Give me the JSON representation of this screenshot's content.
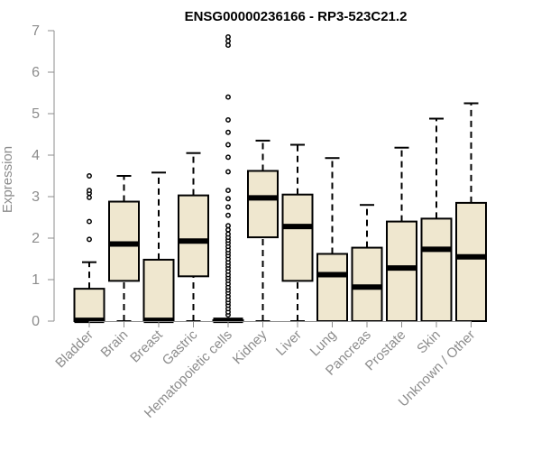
{
  "chart_data": {
    "type": "boxplot",
    "title": "ENSG00000236166 - RP3-523C21.2",
    "xlabel": "",
    "ylabel": "Expression",
    "ylim": [
      0,
      7
    ],
    "yticks": [
      "0",
      "1",
      "2",
      "3",
      "4",
      "5",
      "6",
      "7"
    ],
    "grid": false,
    "legend": "none",
    "colors": {
      "box_fill": "#efe7cf",
      "stroke": "#000000",
      "text": "#8c8c8c"
    },
    "categories": [
      "Bladder",
      "Brain",
      "Breast",
      "Gastric",
      "Hematopoietic cells",
      "Kidney",
      "Liver",
      "Lung",
      "Pancreas",
      "Prostate",
      "Skin",
      "Unknown / Other"
    ],
    "boxes": [
      {
        "min": 0,
        "q1": 0,
        "median": 0.02,
        "q3": 0.78,
        "max": 1.42,
        "outliers": [
          1.97,
          2.4,
          2.98,
          3.08,
          3.15,
          3.5
        ]
      },
      {
        "min": 0,
        "q1": 0.97,
        "median": 1.86,
        "q3": 2.88,
        "max": 3.5,
        "outliers": []
      },
      {
        "min": 0,
        "q1": 0,
        "median": 0.02,
        "q3": 1.48,
        "max": 3.58,
        "outliers": []
      },
      {
        "min": 0,
        "q1": 1.08,
        "median": 1.93,
        "q3": 3.03,
        "max": 4.05,
        "outliers": []
      },
      {
        "min": 0,
        "q1": 0,
        "median": 0.02,
        "q3": 0.02,
        "max": 0.05,
        "outliers": [
          0.15,
          0.22,
          0.3,
          0.38,
          0.45,
          0.52,
          0.6,
          0.68,
          0.75,
          0.82,
          0.9,
          0.98,
          1.05,
          1.12,
          1.2,
          1.28,
          1.35,
          1.42,
          1.5,
          1.58,
          1.65,
          1.72,
          1.8,
          1.88,
          1.95,
          2.02,
          2.1,
          2.2,
          2.3,
          2.55,
          2.75,
          2.95,
          3.15,
          3.6,
          3.95,
          4.25,
          4.55,
          4.85,
          5.4,
          6.65,
          6.75,
          6.85
        ]
      },
      {
        "min": 0,
        "q1": 2.02,
        "median": 2.97,
        "q3": 3.62,
        "max": 4.35,
        "outliers": []
      },
      {
        "min": 0,
        "q1": 0.97,
        "median": 2.28,
        "q3": 3.05,
        "max": 4.25,
        "outliers": []
      },
      {
        "min": 0,
        "q1": 0,
        "median": 1.12,
        "q3": 1.62,
        "max": 3.93,
        "outliers": []
      },
      {
        "min": 0,
        "q1": 0,
        "median": 0.82,
        "q3": 1.77,
        "max": 2.8,
        "outliers": []
      },
      {
        "min": 0,
        "q1": 0,
        "median": 1.28,
        "q3": 2.4,
        "max": 4.18,
        "outliers": []
      },
      {
        "min": 0,
        "q1": 0,
        "median": 1.73,
        "q3": 2.47,
        "max": 4.88,
        "outliers": []
      },
      {
        "min": 0,
        "q1": 0,
        "median": 1.55,
        "q3": 2.85,
        "max": 5.25,
        "outliers": []
      }
    ]
  }
}
